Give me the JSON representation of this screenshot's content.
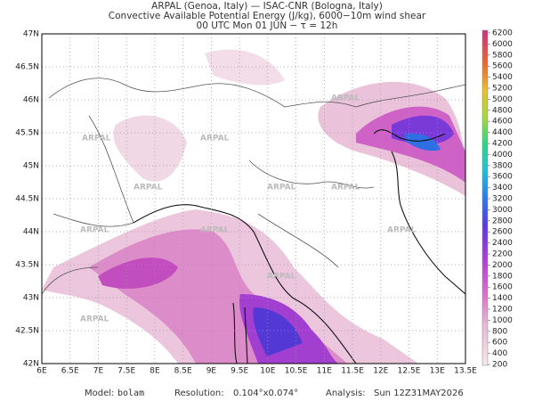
{
  "header": {
    "lines": [
      "ARPAL (Genoa, Italy)  —  ISAC-CNR (Bologna, Italy)",
      "Convective Available Potential Energy (J/kg), 6000−10m wind shear",
      "00 UTC Mon 01 JUN  −  τ = 12h"
    ]
  },
  "map": {
    "lon_labels": [
      "6E",
      "6.5E",
      "7E",
      "7.5E",
      "8E",
      "8.5E",
      "9E",
      "9.5E",
      "10E",
      "10.5E",
      "11E",
      "11.5E",
      "12E",
      "12.5E",
      "13E",
      "13.5E"
    ],
    "lat_labels": [
      "42N",
      "42.5N",
      "43N",
      "43.5N",
      "44N",
      "44.5N",
      "45N",
      "45.5N",
      "46N",
      "46.5N",
      "47N"
    ],
    "watermark": "ARPAL"
  },
  "colorbar": {
    "labels": [
      6200,
      6000,
      5800,
      5600,
      5400,
      5200,
      5000,
      4800,
      4600,
      4400,
      4200,
      4000,
      3800,
      3600,
      3400,
      3200,
      3000,
      2800,
      2600,
      2400,
      2200,
      2000,
      1800,
      1600,
      1400,
      1200,
      1000,
      800,
      600,
      400,
      200
    ]
  },
  "footer": {
    "model_label": "Model:",
    "model": "bolam",
    "resolution_label": "Resolution:",
    "resolution": "0.104°x0.074°",
    "analysis_label": "Analysis:",
    "analysis": "Sun 12Z31MAY2026"
  }
}
